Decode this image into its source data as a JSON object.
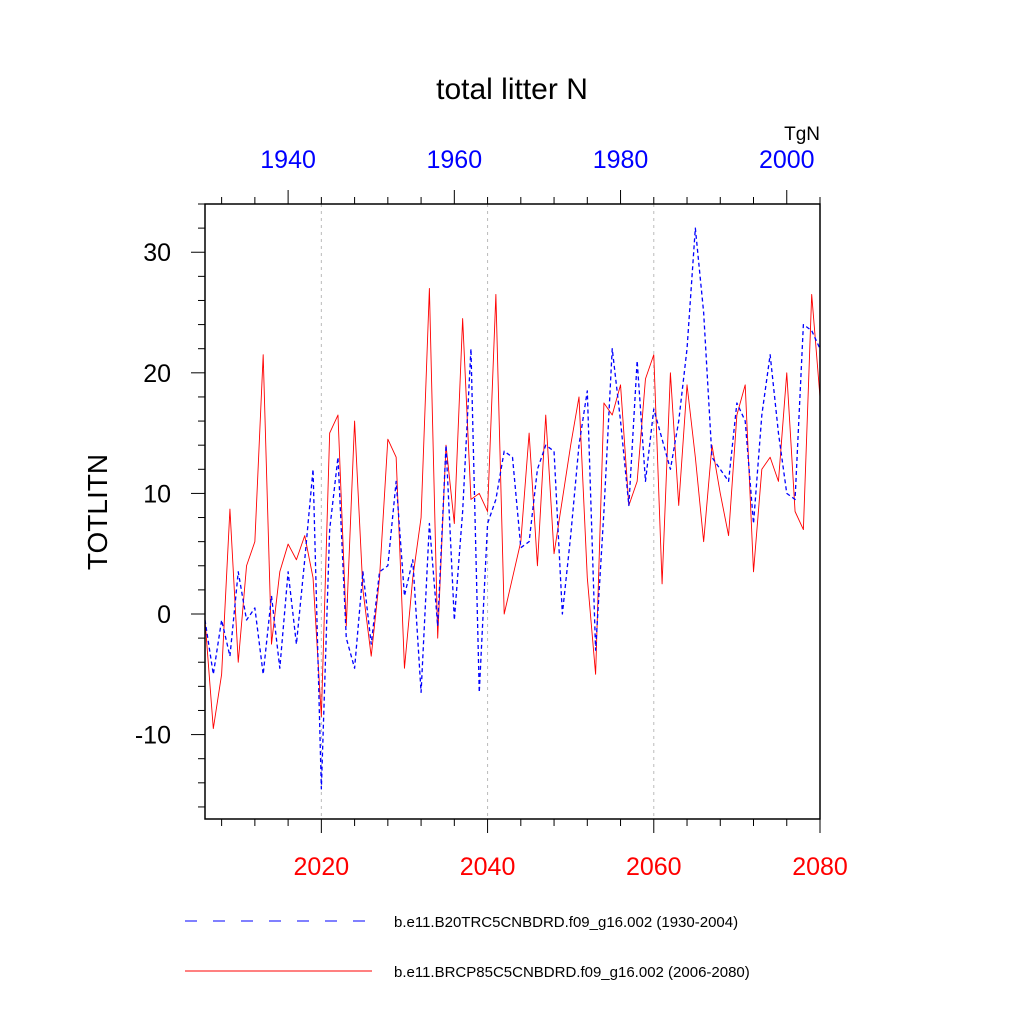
{
  "chart_data": {
    "type": "line",
    "title": "total litter N",
    "units": "TgN",
    "ylabel": "TOTLITN",
    "ylim": [
      -17,
      34
    ],
    "yticks": [
      -10,
      0,
      10,
      20,
      30
    ],
    "bottom_axis": {
      "range": [
        2006,
        2080
      ],
      "ticks": [
        2020,
        2040,
        2060,
        2080
      ],
      "color": "#ff0000"
    },
    "top_axis": {
      "range": [
        1930,
        2004
      ],
      "ticks": [
        1940,
        1960,
        1980,
        2000
      ],
      "color": "#0000ff"
    },
    "gridlines_x": [
      2020,
      2040,
      2060
    ],
    "series": [
      {
        "name": "b.e11.B20TRC5CNBDRD.f09_g16.002 (1930-2004)",
        "color": "#0000ff",
        "dash": "dashed",
        "x_start": 1930,
        "values": [
          -0.5,
          -5,
          -0.5,
          -3.5,
          3.5,
          -0.5,
          0.5,
          -5,
          1.5,
          -4.5,
          3.5,
          -2.5,
          4.5,
          12,
          -14.5,
          7,
          13,
          -2,
          -4.5,
          3.5,
          -2.5,
          3.5,
          4,
          11,
          1.5,
          4.5,
          -6.5,
          7.5,
          -1,
          14,
          -0.5,
          8.5,
          22,
          -6.5,
          7.5,
          9.5,
          13.5,
          13,
          5.5,
          6,
          12,
          14,
          13.5,
          0,
          6.5,
          14,
          18.5,
          -3,
          8.5,
          22,
          16,
          9,
          21,
          11,
          17,
          14.5,
          12,
          16,
          22,
          32,
          25,
          13,
          12,
          11,
          17.5,
          16,
          7.5,
          16.5,
          21.5,
          15,
          10,
          9.5,
          24,
          23.5,
          22
        ]
      },
      {
        "name": "b.e11.BRCP85C5CNBDRD.f09_g16.002 (2006-2080)",
        "color": "#ff0000",
        "dash": "solid",
        "x_start": 2006,
        "values": [
          -0.5,
          -9.5,
          -5,
          8.7,
          -4,
          4,
          6,
          21.5,
          -2.5,
          3.5,
          5.8,
          4.5,
          6.5,
          3,
          -8.5,
          15,
          16.5,
          -1,
          16,
          2,
          -3.5,
          3,
          14.5,
          13,
          -4.5,
          3,
          8,
          27,
          -2,
          14,
          7.5,
          24.5,
          9.5,
          10,
          8.5,
          26.5,
          0,
          3,
          6,
          15,
          4,
          16.5,
          5,
          9.5,
          14,
          18,
          3,
          -5,
          17.5,
          16.5,
          19,
          9,
          11,
          19.5,
          21.5,
          2.5,
          20,
          9,
          19,
          13,
          6,
          14,
          10,
          6.5,
          16.5,
          19,
          3.5,
          12,
          13,
          11,
          20,
          8.5,
          7,
          26.5,
          18
        ]
      }
    ]
  }
}
